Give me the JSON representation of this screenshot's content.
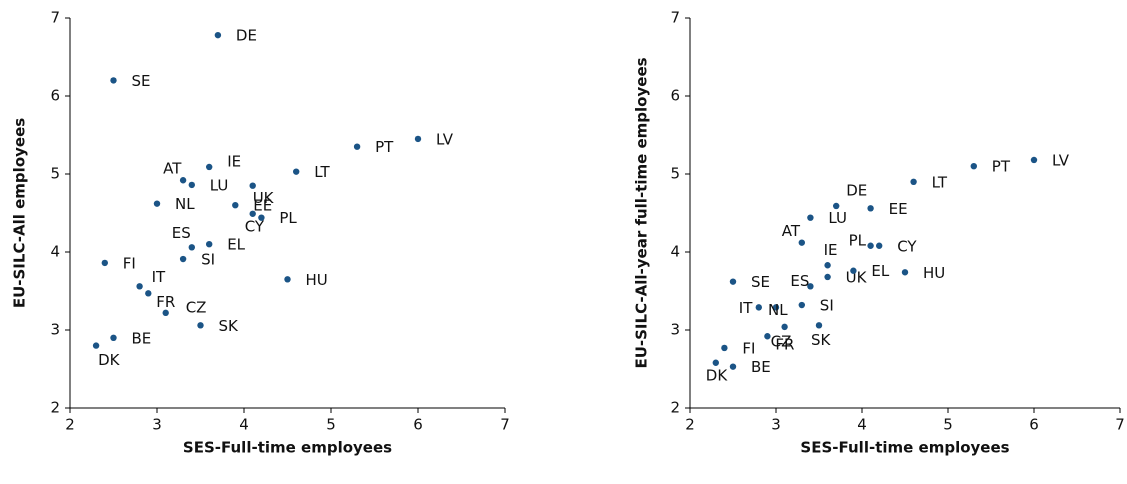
{
  "chart_data": [
    {
      "type": "scatter",
      "xlabel": "SES-Full-time employees",
      "ylabel": "EU-SILC-All employees",
      "color": "#1b5486",
      "xlim": [
        2,
        7
      ],
      "ylim": [
        2,
        7
      ],
      "xticks": [
        2,
        3,
        4,
        5,
        6,
        7
      ],
      "yticks": [
        2,
        3,
        4,
        5,
        6,
        7
      ],
      "labels": [
        "DE",
        "SE",
        "LV",
        "PT",
        "LT",
        "IE",
        "AT",
        "LU",
        "UK",
        "NL",
        "EE",
        "CY",
        "PL",
        "ES",
        "EL",
        "SI",
        "FI",
        "HU",
        "IT",
        "FR",
        "CZ",
        "SK",
        "BE",
        "DK"
      ],
      "x": [
        3.7,
        2.5,
        6.0,
        5.3,
        4.6,
        3.6,
        3.3,
        3.4,
        4.1,
        3.0,
        3.9,
        4.1,
        4.2,
        3.4,
        3.6,
        3.3,
        2.4,
        4.5,
        2.8,
        2.9,
        3.1,
        3.5,
        2.5,
        2.3
      ],
      "y": [
        6.78,
        6.2,
        5.45,
        5.35,
        5.03,
        5.09,
        4.92,
        4.86,
        4.85,
        4.62,
        4.6,
        4.49,
        4.44,
        4.06,
        4.1,
        3.91,
        3.86,
        3.65,
        3.56,
        3.47,
        3.22,
        3.06,
        2.9,
        2.8
      ]
    },
    {
      "type": "scatter",
      "xlabel": "SES-Full-time employees",
      "ylabel": "EU-SILC-All-year full-time employees",
      "color": "#1b5486",
      "xlim": [
        2,
        7
      ],
      "ylim": [
        2,
        7
      ],
      "xticks": [
        2,
        3,
        4,
        5,
        6,
        7
      ],
      "yticks": [
        2,
        3,
        4,
        5,
        6,
        7
      ],
      "labels": [
        "LV",
        "PT",
        "LT",
        "DE",
        "EE",
        "LU",
        "AT",
        "PL",
        "CY",
        "IE",
        "UK",
        "HU",
        "EL",
        "SE",
        "ES",
        "SI",
        "NL",
        "IT",
        "CZ",
        "SK",
        "FR",
        "FI",
        "DK",
        "BE"
      ],
      "x": [
        6.0,
        5.3,
        4.6,
        3.7,
        4.1,
        3.4,
        3.3,
        4.1,
        4.2,
        3.6,
        3.6,
        4.5,
        3.9,
        2.5,
        3.4,
        3.3,
        3.0,
        2.8,
        3.1,
        3.5,
        2.9,
        2.4,
        2.3,
        2.5
      ],
      "y": [
        5.18,
        5.1,
        4.9,
        4.59,
        4.56,
        4.44,
        4.12,
        4.08,
        4.08,
        3.83,
        3.68,
        3.74,
        3.76,
        3.62,
        3.56,
        3.32,
        3.29,
        3.29,
        3.04,
        3.06,
        2.92,
        2.77,
        2.58,
        2.53
      ]
    }
  ]
}
